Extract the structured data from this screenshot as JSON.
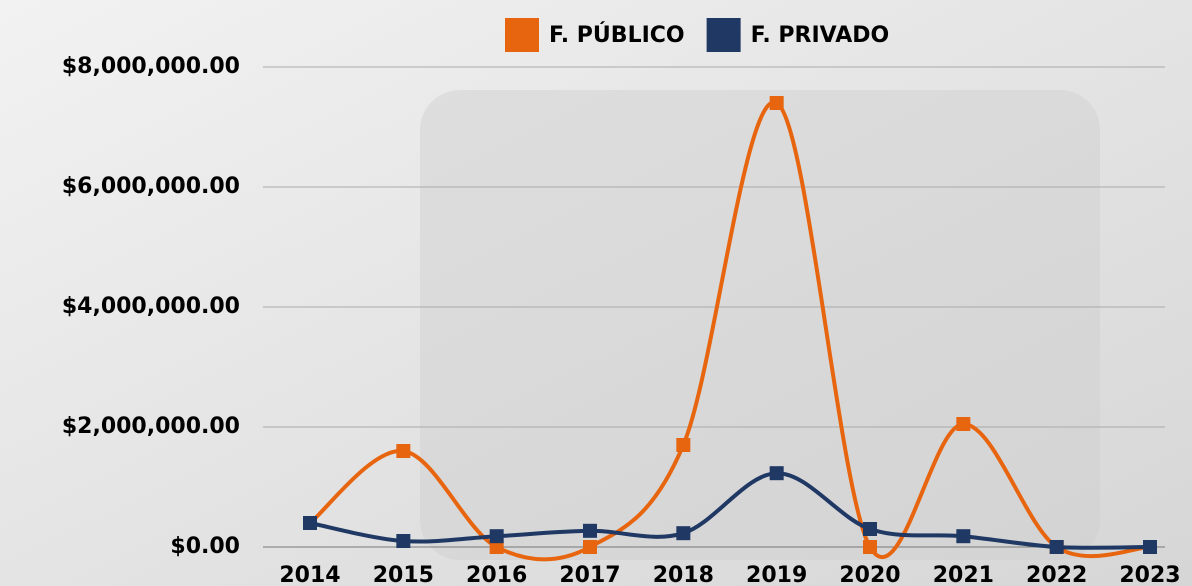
{
  "chart_data": {
    "type": "line",
    "categories": [
      "2014",
      "2015",
      "2016",
      "2017",
      "2018",
      "2019",
      "2020",
      "2021",
      "2022",
      "2023"
    ],
    "series": [
      {
        "name": "F. PÚBLICO",
        "color": "#e8650f",
        "values": [
          400000,
          1600000,
          0,
          0,
          1700000,
          7400000,
          0,
          2050000,
          0,
          0
        ]
      },
      {
        "name": "F. PRIVADO",
        "color": "#1f3864",
        "values": [
          400000,
          100000,
          180000,
          270000,
          230000,
          1230000,
          300000,
          180000,
          0,
          0
        ]
      }
    ],
    "ylim": [
      0,
      8000000
    ],
    "yticks": [
      {
        "value": 0,
        "label": "$0.00"
      },
      {
        "value": 2000000,
        "label": "$2,000,000.00"
      },
      {
        "value": 4000000,
        "label": "$4,000,000.00"
      },
      {
        "value": 6000000,
        "label": "$6,000,000.00"
      },
      {
        "value": 8000000,
        "label": "$8,000,000.00"
      }
    ],
    "grid": true,
    "smooth": true,
    "legend": "top"
  }
}
